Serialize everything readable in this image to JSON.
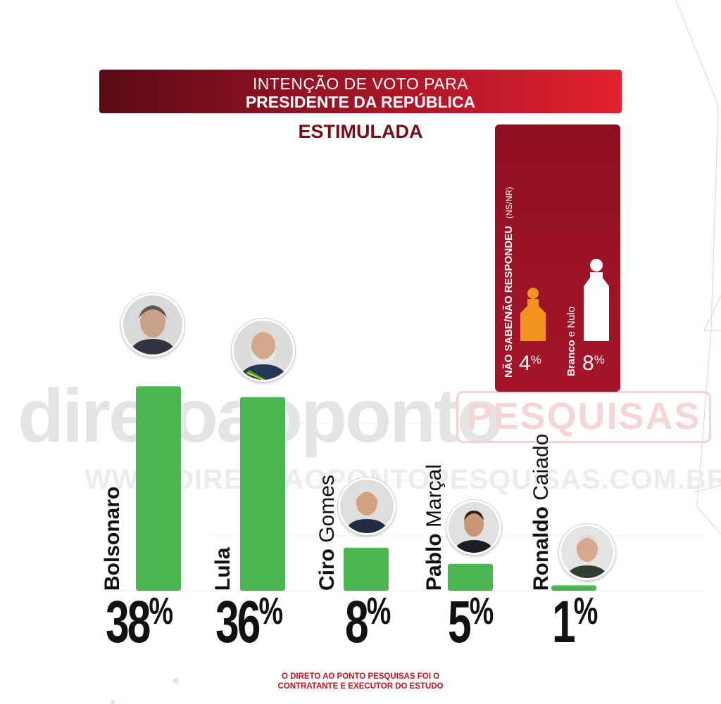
{
  "header": {
    "title_line1": "INTENÇÃO DE VOTO PARA",
    "title_line2": "PRESIDENTE DA REPÚBLICA",
    "subtitle": "ESTIMULADA"
  },
  "watermark": {
    "brand": "diretoaoponto",
    "badge": "PESQUISAS",
    "url": "WWW.DIRETOAOPONTOPESQUISAS.COM.BR"
  },
  "side_panel": {
    "header": "NÃO SABE/NÃO RESPONDEU",
    "header_abbr": "(NS/NR)",
    "items": [
      {
        "label": "NÃO SABE/NÃO RESPONDEU",
        "value_label": "4%",
        "number": "4",
        "value": 4,
        "color": "#f0941f"
      },
      {
        "label_bold": "Branco",
        "label_rest": " e Nulo",
        "value_label": "8%",
        "number": "8",
        "value": 8,
        "color": "#ffffff"
      }
    ]
  },
  "chart_data": {
    "type": "bar",
    "categories": [
      "Bolsonaro",
      "Lula",
      "Ciro Gomes",
      "Pablo Marçal",
      "Ronaldo Caiado"
    ],
    "values": [
      38,
      36,
      8,
      5,
      1
    ],
    "value_labels": [
      "38%",
      "36%",
      "8%",
      "5%",
      "1%"
    ],
    "name_parts": [
      {
        "bold": "Bolsonaro",
        "light": ""
      },
      {
        "bold": "Lula",
        "light": ""
      },
      {
        "bold": "Ciro",
        "light": " Gomes"
      },
      {
        "bold": "Pablo",
        "light": " Marçal"
      },
      {
        "bold": "Ronaldo",
        "light": " Caiado"
      }
    ],
    "numbers": [
      "38",
      "36",
      "8",
      "5",
      "1"
    ],
    "unit": "%",
    "bar_color": "#4cb652",
    "grid": true
  },
  "footer": {
    "line1": "O DIRETO AO PONTO PESQUISAS FOI O",
    "line2": "CONTRATANTE E EXECUTOR DO ESTUDO"
  },
  "colors": {
    "accent_dark": "#7a0c18",
    "accent": "#a5152a",
    "accent_bright": "#e2202f",
    "bar": "#4cb652"
  }
}
